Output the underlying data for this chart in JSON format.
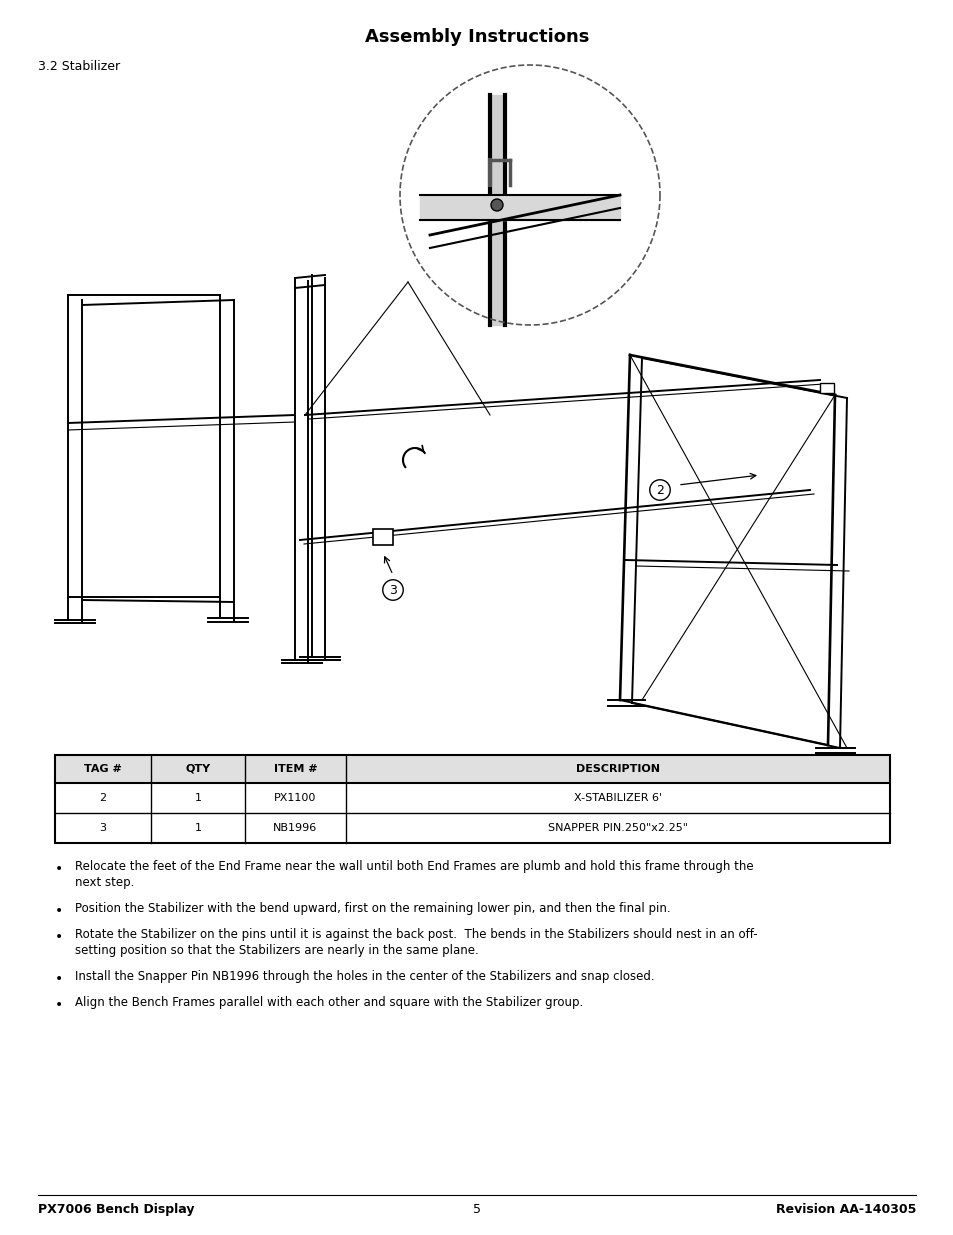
{
  "title": "Assembly Instructions",
  "subtitle": "3.2 Stabilizer",
  "background_color": "#ffffff",
  "table_headers": [
    "TAG #",
    "QTY",
    "ITEM #",
    "DESCRIPTION"
  ],
  "table_rows": [
    [
      "2",
      "1",
      "PX1100",
      "X-STABILIZER 6'"
    ],
    [
      "3",
      "1",
      "NB1996",
      "SNAPPER PIN.250\"x2.25\""
    ]
  ],
  "bullet_points": [
    [
      "Relocate the feet of the End Frame near the wall until both End Frames are plumb and hold this frame through the",
      "next step."
    ],
    [
      "Position the Stabilizer with the bend upward, first on the remaining lower pin, and then the final pin."
    ],
    [
      "Rotate the Stabilizer on the pins until it is against the back post.  The bends in the Stabilizers should nest in an off-",
      "setting position so that the Stabilizers are nearly in the same plane."
    ],
    [
      "Install the Snapper Pin NB1996 through the holes in the center of the Stabilizers and snap closed."
    ],
    [
      "Align the Bench Frames parallel with each other and square with the Stabilizer group."
    ]
  ],
  "footer_left": "PX7006 Bench Display",
  "footer_center": "5",
  "footer_right": "Revision AA-140305",
  "page_width": 9.54,
  "page_height": 12.35
}
